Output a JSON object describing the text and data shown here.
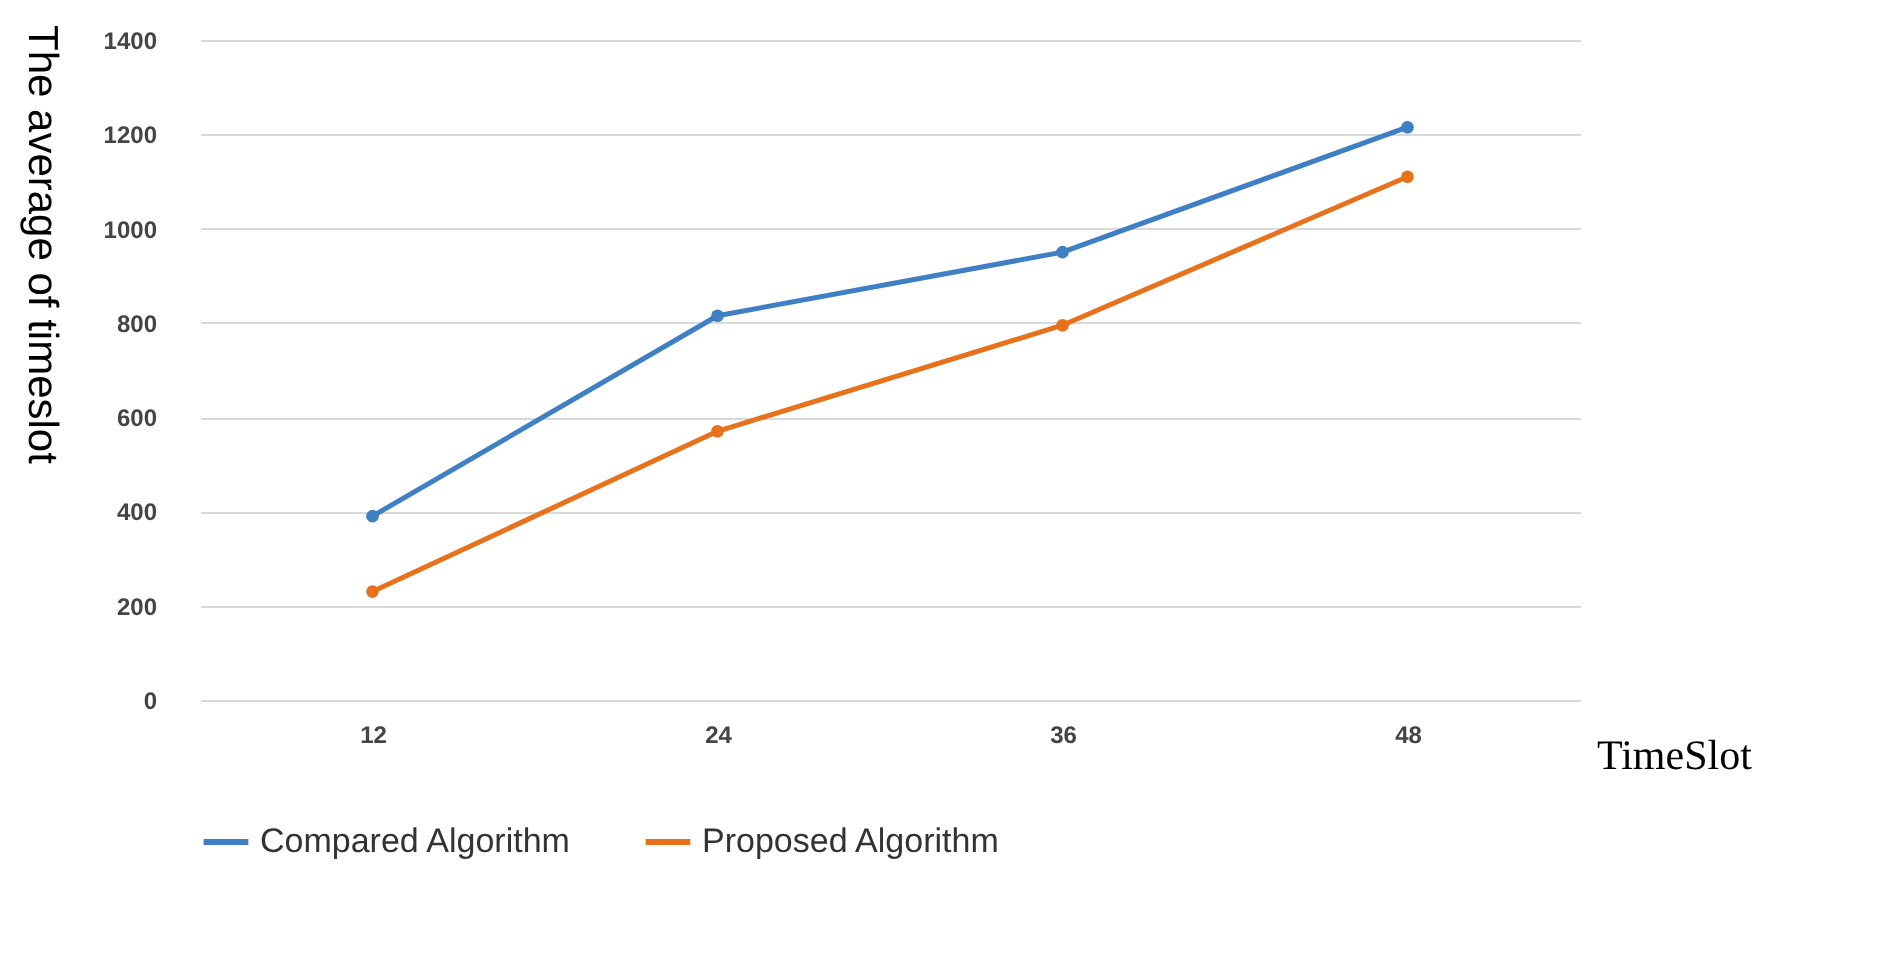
{
  "chart_data": {
    "type": "line",
    "xlabel": "TimeSlot",
    "ylabel": "The average of timeslot",
    "categories": [
      "12",
      "24",
      "36",
      "48"
    ],
    "series": [
      {
        "name": "Compared Algorithm",
        "color": "#3f7fc4",
        "values": [
          390,
          815,
          950,
          1215
        ]
      },
      {
        "name": "Proposed Algorithm",
        "color": "#e8711c",
        "values": [
          230,
          570,
          795,
          1110
        ]
      }
    ],
    "ylim": [
      0,
      1400
    ],
    "yticks": [
      0,
      200,
      400,
      600,
      800,
      1000,
      1200,
      1400
    ],
    "grid": "y",
    "legend": "bottom",
    "marker": "circle",
    "line_style": "solid"
  }
}
